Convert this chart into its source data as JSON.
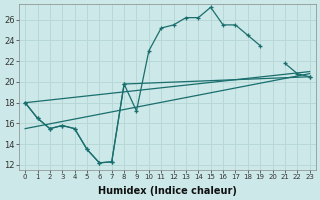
{
  "title": "",
  "xlabel": "Humidex (Indice chaleur)",
  "ylabel": "",
  "bg_color": "#cce8e8",
  "grid_color": "#b8d8d8",
  "line_color": "#1a6e6e",
  "xlim": [
    -0.5,
    23.5
  ],
  "ylim": [
    11.5,
    27.5
  ],
  "xticks": [
    0,
    1,
    2,
    3,
    4,
    5,
    6,
    7,
    8,
    9,
    10,
    11,
    12,
    13,
    14,
    15,
    16,
    17,
    18,
    19,
    20,
    21,
    22,
    23
  ],
  "yticks": [
    12,
    14,
    16,
    18,
    20,
    22,
    24,
    26
  ],
  "series": [
    {
      "x": [
        0,
        1,
        2,
        3,
        4,
        5,
        6,
        7,
        8,
        9,
        10,
        11,
        12,
        13,
        14,
        15,
        16,
        17,
        18,
        19,
        20,
        21,
        22,
        23
      ],
      "y": [
        18.0,
        16.5,
        15.5,
        15.8,
        15.5,
        13.5,
        12.2,
        12.3,
        19.8,
        17.2,
        23.0,
        25.2,
        25.5,
        26.2,
        26.2,
        27.2,
        25.5,
        25.5,
        24.5,
        23.5,
        null,
        21.8,
        20.8,
        20.5
      ]
    },
    {
      "x": [
        0,
        23
      ],
      "y": [
        18.0,
        21.0
      ]
    },
    {
      "x": [
        0,
        23
      ],
      "y": [
        15.5,
        20.8
      ]
    },
    {
      "x": [
        0,
        1,
        2,
        3,
        4,
        5,
        6,
        7,
        8,
        23
      ],
      "y": [
        18.0,
        16.5,
        15.5,
        15.8,
        15.5,
        13.5,
        12.2,
        12.3,
        19.8,
        20.5
      ]
    }
  ]
}
